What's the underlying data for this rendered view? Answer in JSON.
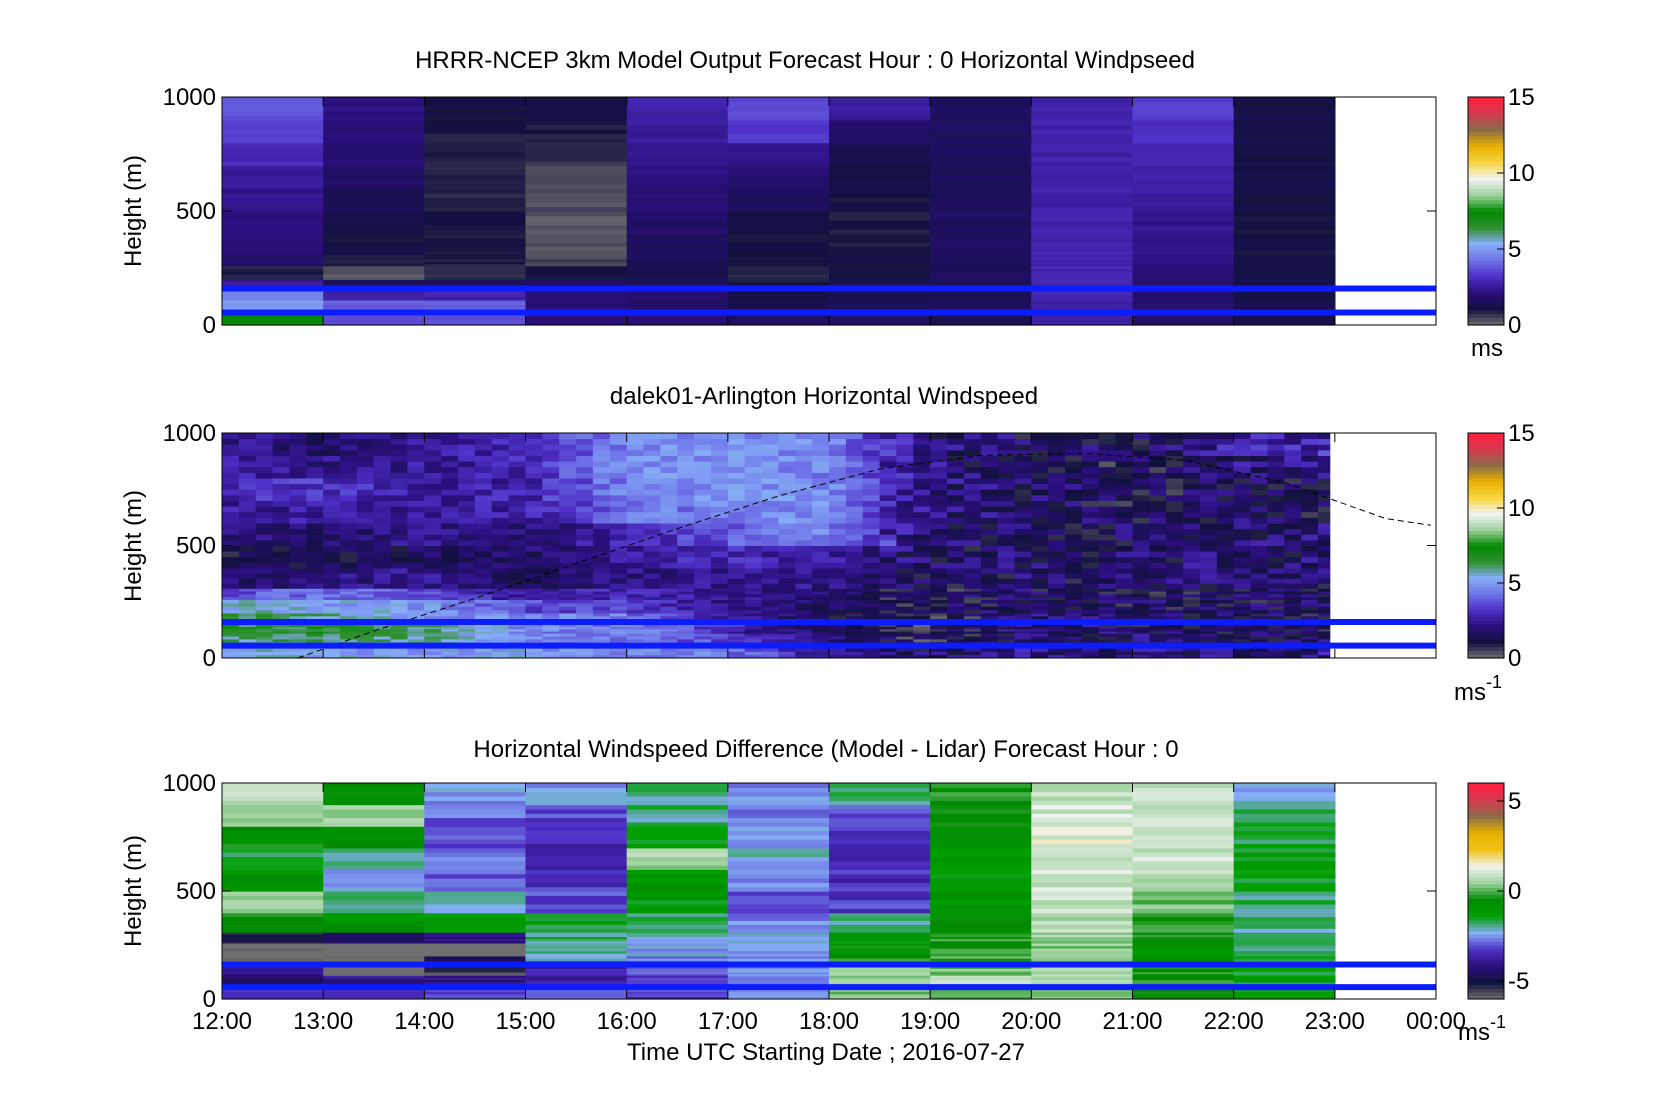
{
  "chart_data": [
    {
      "type": "heatmap",
      "title": "HRRR-NCEP 3km Model Output   Forecast Hour : 0 Horizontal Windpseed",
      "ylabel": "Height (m)",
      "ylim": [
        0,
        1000
      ],
      "yticks": [
        "0",
        "500",
        "1000"
      ],
      "xlim": [
        12,
        24
      ],
      "colorbar": {
        "label": "ms",
        "ticks": [
          "0",
          "5",
          "10",
          "15"
        ],
        "range": [
          0,
          15
        ]
      },
      "band_edges": [
        0,
        60,
        110,
        150,
        200,
        260,
        310,
        400,
        500,
        600,
        700,
        800,
        900,
        1000
      ],
      "columns": [
        {
          "x0": 12,
          "x1": 13,
          "speed": [
            7.5,
            5.0,
            4.6,
            2.6,
            0.9,
            1.8,
            2.0,
            2.2,
            2.4,
            2.6,
            3.0,
            3.4,
            3.8
          ]
        },
        {
          "x0": 13,
          "x1": 14,
          "speed": [
            3.6,
            3.9,
            2.8,
            1.5,
            0.3,
            0.8,
            1.1,
            1.3,
            1.5,
            1.7,
            1.9,
            2.1,
            2.3
          ]
        },
        {
          "x0": 14,
          "x1": 15,
          "speed": [
            3.6,
            3.9,
            2.8,
            1.5,
            0.8,
            0.9,
            1.0,
            1.0,
            0.9,
            0.9,
            0.9,
            1.0,
            1.1
          ]
        },
        {
          "x0": 15,
          "x1": 16,
          "speed": [
            2.0,
            2.1,
            2.0,
            1.6,
            1.1,
            0.5,
            0.3,
            0.3,
            0.4,
            0.5,
            0.7,
            0.9,
            1.1
          ]
        },
        {
          "x0": 16,
          "x1": 17,
          "speed": [
            2.0,
            1.8,
            1.9,
            1.6,
            1.4,
            1.5,
            1.7,
            1.8,
            2.0,
            2.2,
            2.4,
            2.6,
            2.8
          ]
        },
        {
          "x0": 17,
          "x1": 18,
          "speed": [
            1.6,
            1.4,
            1.2,
            1.0,
            0.9,
            1.0,
            1.1,
            1.3,
            1.6,
            1.9,
            2.3,
            3.3,
            3.6
          ]
        },
        {
          "x0": 18,
          "x1": 19,
          "speed": [
            1.7,
            1.6,
            1.5,
            1.4,
            1.2,
            1.1,
            1.0,
            1.0,
            1.1,
            1.2,
            1.4,
            1.7,
            2.6
          ]
        },
        {
          "x0": 19,
          "x1": 20,
          "speed": [
            1.5,
            1.5,
            1.5,
            1.5,
            1.6,
            1.6,
            1.6,
            1.6,
            1.6,
            1.6,
            1.6,
            1.6,
            1.6
          ]
        },
        {
          "x0": 20,
          "x1": 21,
          "speed": [
            2.8,
            2.8,
            2.9,
            2.9,
            2.9,
            2.9,
            2.8,
            2.8,
            2.8,
            2.8,
            2.8,
            2.8,
            2.8
          ]
        },
        {
          "x0": 21,
          "x1": 22,
          "speed": [
            1.8,
            1.9,
            1.9,
            2.0,
            2.1,
            2.2,
            2.3,
            2.4,
            2.6,
            2.8,
            3.0,
            3.2,
            3.4
          ]
        },
        {
          "x0": 22,
          "x1": 23,
          "speed": [
            1.3,
            1.3,
            1.2,
            1.2,
            1.2,
            1.1,
            1.1,
            1.1,
            1.1,
            1.2,
            1.2,
            1.2,
            1.3
          ]
        }
      ],
      "reference_lines_m": [
        160,
        55
      ]
    },
    {
      "type": "heatmap",
      "title": "dalek01-Arlington  Horizontal Windspeed",
      "ylabel": "Height (m)",
      "ylim": [
        0,
        1000
      ],
      "yticks": [
        "0",
        "500",
        "1000"
      ],
      "xlim": [
        12,
        24
      ],
      "data_end": 22.95,
      "colorbar": {
        "label": "ms",
        "label_sup": "-1",
        "ticks": [
          "0",
          "5",
          "10",
          "15"
        ],
        "range": [
          0,
          15
        ]
      },
      "profile_keyframes": [
        {
          "t": 12.0,
          "speed": [
            5.6,
            6.0,
            6.5,
            6.4,
            5.5,
            3.4,
            1.8,
            1.2,
            2.2,
            2.6,
            3.0,
            2.6,
            2.4
          ]
        },
        {
          "t": 13.0,
          "speed": [
            5.2,
            6.2,
            6.6,
            5.8,
            5.2,
            4.4,
            2.1,
            1.4,
            1.8,
            2.6,
            3.2,
            2.3,
            1.8
          ]
        },
        {
          "t": 14.0,
          "speed": [
            5.0,
            5.8,
            6.2,
            5.0,
            5.0,
            3.6,
            2.4,
            1.6,
            2.3,
            2.6,
            2.7,
            2.5,
            2.5
          ]
        },
        {
          "t": 15.0,
          "speed": [
            5.2,
            4.8,
            4.6,
            4.8,
            3.6,
            2.6,
            1.4,
            1.8,
            2.1,
            2.7,
            2.8,
            2.9,
            3.0
          ]
        },
        {
          "t": 16.0,
          "speed": [
            4.6,
            4.4,
            4.6,
            4.4,
            3.4,
            3.0,
            2.2,
            2.6,
            2.8,
            4.2,
            4.6,
            4.8,
            4.6
          ]
        },
        {
          "t": 17.0,
          "speed": [
            4.4,
            3.4,
            3.0,
            2.6,
            2.4,
            2.3,
            2.4,
            3.0,
            3.8,
            4.6,
            4.8,
            4.9,
            4.8
          ]
        },
        {
          "t": 18.0,
          "speed": [
            2.4,
            2.0,
            1.6,
            1.4,
            1.7,
            1.8,
            2.2,
            2.6,
            4.6,
            4.8,
            4.8,
            4.6,
            4.6
          ]
        },
        {
          "t": 19.0,
          "speed": [
            1.6,
            1.0,
            0.9,
            0.8,
            1.2,
            1.2,
            1.4,
            1.6,
            1.8,
            2.0,
            2.2,
            2.0,
            2.0
          ]
        },
        {
          "t": 20.0,
          "speed": [
            2.2,
            2.0,
            2.0,
            2.0,
            1.8,
            1.6,
            1.8,
            1.8,
            1.8,
            1.7,
            1.7,
            1.6,
            1.6
          ]
        },
        {
          "t": 21.0,
          "speed": [
            2.2,
            1.8,
            1.6,
            1.6,
            1.5,
            1.4,
            1.6,
            1.8,
            1.6,
            1.4,
            1.3,
            1.2,
            1.6
          ]
        },
        {
          "t": 22.0,
          "speed": [
            2.0,
            1.6,
            1.4,
            1.6,
            1.5,
            1.6,
            1.8,
            2.0,
            1.8,
            1.6,
            1.6,
            2.0,
            2.6
          ]
        },
        {
          "t": 22.95,
          "speed": [
            2.2,
            1.8,
            1.6,
            1.6,
            1.8,
            1.6,
            1.6,
            1.8,
            2.0,
            1.6,
            1.7,
            2.4,
            2.8
          ]
        }
      ],
      "band_edges": [
        0,
        60,
        110,
        150,
        200,
        260,
        310,
        400,
        500,
        600,
        700,
        800,
        900,
        1000
      ],
      "boundary_layer_curve": [
        {
          "t": 12.75,
          "h": 0
        },
        {
          "t": 13.5,
          "h": 120
        },
        {
          "t": 14.5,
          "h": 265
        },
        {
          "t": 15.5,
          "h": 420
        },
        {
          "t": 16.5,
          "h": 575
        },
        {
          "t": 17.5,
          "h": 720
        },
        {
          "t": 18.5,
          "h": 840
        },
        {
          "t": 19.5,
          "h": 900
        },
        {
          "t": 20.5,
          "h": 910
        },
        {
          "t": 21.5,
          "h": 880
        },
        {
          "t": 22.5,
          "h": 780
        },
        {
          "t": 23.5,
          "h": 620
        },
        {
          "t": 23.95,
          "h": 590
        }
      ],
      "reference_lines_m": [
        160,
        55
      ]
    },
    {
      "type": "heatmap",
      "title": "Horizontal Windspeed Difference (Model - Lidar) Forecast Hour : 0",
      "ylabel": "Height (m)",
      "xlabel": "Time UTC  Starting Date ; 2016-07-27",
      "ylim": [
        0,
        1000
      ],
      "yticks": [
        "0",
        "500",
        "1000"
      ],
      "xlim": [
        12,
        24
      ],
      "xticks": [
        "12:00",
        "13:00",
        "14:00",
        "15:00",
        "16:00",
        "17:00",
        "18:00",
        "19:00",
        "20:00",
        "21:00",
        "22:00",
        "23:00",
        "00:00"
      ],
      "colorbar": {
        "label": "ms",
        "label_sup": "-1",
        "ticks": [
          "-5",
          "0",
          "5"
        ],
        "range": [
          -6,
          6
        ]
      },
      "band_edges": [
        0,
        60,
        110,
        150,
        200,
        260,
        310,
        400,
        500,
        600,
        700,
        800,
        900,
        1000
      ],
      "columns": [
        {
          "x0": 12,
          "x1": 13,
          "diff": [
            -3.0,
            -4.5,
            -3.8,
            -6.2,
            -6.2,
            -5.2,
            -0.6,
            0.6,
            -0.8,
            -1.5,
            -0.6,
            0.2,
            0.8
          ]
        },
        {
          "x0": 13,
          "x1": 14,
          "diff": [
            -3.5,
            -4.0,
            -6.2,
            -6.2,
            -6.2,
            -4.8,
            -0.9,
            -1.8,
            -2.4,
            -2.0,
            -0.8,
            0.6,
            -0.4
          ]
        },
        {
          "x0": 14,
          "x1": 15,
          "diff": [
            -3.3,
            -4.2,
            -5.5,
            -4.8,
            -6.2,
            -4.2,
            -1.2,
            -2.2,
            -2.8,
            -2.6,
            -3.0,
            -2.8,
            -2.5
          ]
        },
        {
          "x0": 15,
          "x1": 16,
          "diff": [
            -3.0,
            -3.6,
            -3.6,
            -2.4,
            -2.0,
            -1.8,
            -1.6,
            -3.0,
            -3.3,
            -3.4,
            -3.5,
            -3.2,
            -2.5
          ]
        },
        {
          "x0": 16,
          "x1": 17,
          "diff": [
            -3.2,
            -3.2,
            -2.9,
            -2.6,
            -2.4,
            -2.2,
            -1.6,
            -1.2,
            -1.0,
            0.6,
            -1.4,
            -1.8,
            -1.8
          ]
        },
        {
          "x0": 17,
          "x1": 18,
          "diff": [
            -2.8,
            -2.6,
            -2.4,
            -2.5,
            -2.3,
            -2.4,
            -2.6,
            -2.8,
            -2.6,
            -2.3,
            -2.6,
            -2.8,
            -2.6
          ]
        },
        {
          "x0": 18,
          "x1": 19,
          "diff": [
            0.2,
            0.5,
            0.6,
            -0.2,
            -0.6,
            -1.2,
            -1.8,
            -3.2,
            -3.4,
            -3.5,
            -3.4,
            -3.2,
            -1.8
          ]
        },
        {
          "x0": 19,
          "x1": 20,
          "diff": [
            0.2,
            0.6,
            0.2,
            -0.1,
            -0.2,
            -0.3,
            -0.8,
            -1.0,
            -1.2,
            -1.0,
            -0.8,
            -0.6,
            -0.4
          ]
        },
        {
          "x0": 20,
          "x1": 21,
          "diff": [
            0.4,
            0.8,
            0.6,
            0.3,
            0.4,
            0.5,
            0.6,
            0.8,
            1.0,
            1.0,
            1.2,
            1.0,
            0.8
          ]
        },
        {
          "x0": 21,
          "x1": 22,
          "diff": [
            -0.6,
            -0.2,
            -0.4,
            -0.6,
            -0.8,
            -0.5,
            -0.3,
            0.2,
            0.6,
            1.0,
            1.1,
            1.0,
            0.8
          ]
        },
        {
          "x0": 22,
          "x1": 23,
          "diff": [
            -1.2,
            -1.4,
            -1.6,
            -1.8,
            -1.8,
            -2.0,
            -2.0,
            -1.8,
            -1.6,
            -1.5,
            -1.6,
            -1.8,
            -2.2
          ]
        }
      ],
      "reference_lines_m": [
        160,
        55
      ]
    }
  ],
  "colors": {
    "reference_line": "#0b1dfc",
    "speed_scale": [
      "#6f6f6f",
      "#12103e",
      "#2a0f7c",
      "#4e2fc6",
      "#6f74e8",
      "#86aef7",
      "#2f8f2f",
      "#008a00",
      "#9ed29e",
      "#f3f3f3",
      "#f8d63c",
      "#e8b100",
      "#8b6c46",
      "#d43a50",
      "#ff1f3f"
    ],
    "diff_scale": [
      "#6f6f6f",
      "#12103e",
      "#2a0f7c",
      "#4e2fc6",
      "#86aef7",
      "#00a000",
      "#008a00",
      "#9ed29e",
      "#f3f3f3",
      "#f0c419",
      "#e8b100",
      "#8b6c46",
      "#d43a50",
      "#ff1f3f"
    ]
  }
}
